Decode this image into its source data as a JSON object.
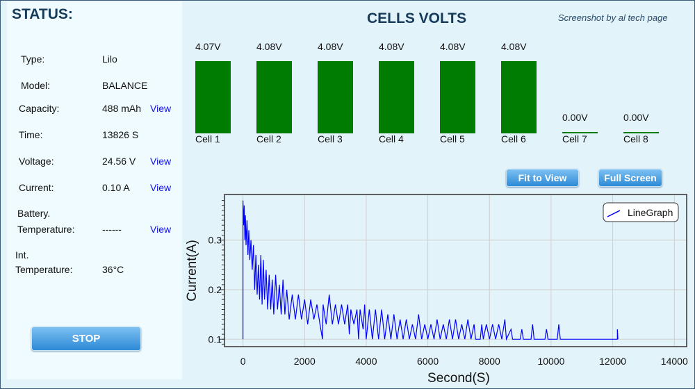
{
  "status": {
    "title": "STATUS:",
    "rows": [
      {
        "label": "Type:",
        "value": "Lilo"
      },
      {
        "label": "Model:",
        "value": "BALANCE"
      },
      {
        "label": "Capacity:",
        "value": "488 mAh",
        "link": "View"
      },
      {
        "label": "Time:",
        "value": "13826 S"
      },
      {
        "label": "Voltage:",
        "value": "24.56 V",
        "link": "View"
      },
      {
        "label": "Current:",
        "value": "0.10 A",
        "link": "View"
      },
      {
        "label_line1": "Battery.",
        "label": "Temperature:",
        "value": "------",
        "link": "View"
      },
      {
        "label_line1": "Int.",
        "label": "Temperature:",
        "value": "36°C"
      }
    ],
    "stop_label": "STOP"
  },
  "header": {
    "title": "CELLS VOLTS",
    "credit": "Screenshot by al tech page"
  },
  "cells": [
    {
      "name": "Cell 1",
      "voltage_label": "4.07V",
      "voltage": 4.07
    },
    {
      "name": "Cell 2",
      "voltage_label": "4.08V",
      "voltage": 4.08
    },
    {
      "name": "Cell 3",
      "voltage_label": "4.08V",
      "voltage": 4.08
    },
    {
      "name": "Cell 4",
      "voltage_label": "4.08V",
      "voltage": 4.08
    },
    {
      "name": "Cell 5",
      "voltage_label": "4.08V",
      "voltage": 4.08
    },
    {
      "name": "Cell 6",
      "voltage_label": "4.08V",
      "voltage": 4.08
    },
    {
      "name": "Cell 7",
      "voltage_label": "0.00V",
      "voltage": 0
    },
    {
      "name": "Cell 8",
      "voltage_label": "0.00V",
      "voltage": 0
    }
  ],
  "buttons": {
    "fit": "Fit to View",
    "full": "Full Screen"
  },
  "colors": {
    "bar": "#007d00",
    "line": "#0000ff",
    "accent": "#2e8ad6"
  },
  "chart_data": {
    "type": "line",
    "xlabel": "Second(S)",
    "ylabel": "Current(A)",
    "xlim": [
      -600,
      14400
    ],
    "ylim": [
      0.085,
      0.392
    ],
    "xticks": [
      0,
      2000,
      4000,
      6000,
      8000,
      10000,
      12000,
      14000
    ],
    "yticks": [
      0.1,
      0.2,
      0.3
    ],
    "ytick_labels": [
      "0.1",
      "0.2",
      "0.3"
    ],
    "grid": true,
    "legend": "top-right",
    "series": [
      {
        "name": "LineGraph",
        "points": [
          [
            0,
            0.1
          ],
          [
            0,
            0.38
          ],
          [
            20,
            0.33
          ],
          [
            40,
            0.37
          ],
          [
            60,
            0.3
          ],
          [
            80,
            0.35
          ],
          [
            100,
            0.29
          ],
          [
            130,
            0.34
          ],
          [
            160,
            0.27
          ],
          [
            190,
            0.32
          ],
          [
            220,
            0.26
          ],
          [
            260,
            0.3
          ],
          [
            300,
            0.24
          ],
          [
            340,
            0.29
          ],
          [
            380,
            0.2
          ],
          [
            420,
            0.27
          ],
          [
            460,
            0.19
          ],
          [
            500,
            0.25
          ],
          [
            540,
            0.18
          ],
          [
            580,
            0.27
          ],
          [
            620,
            0.17
          ],
          [
            660,
            0.26
          ],
          [
            700,
            0.18
          ],
          [
            750,
            0.24
          ],
          [
            800,
            0.16
          ],
          [
            850,
            0.23
          ],
          [
            900,
            0.16
          ],
          [
            950,
            0.22
          ],
          [
            1000,
            0.15
          ],
          [
            1060,
            0.23
          ],
          [
            1120,
            0.16
          ],
          [
            1180,
            0.21
          ],
          [
            1240,
            0.15
          ],
          [
            1300,
            0.22
          ],
          [
            1360,
            0.15
          ],
          [
            1420,
            0.2
          ],
          [
            1500,
            0.14
          ],
          [
            1600,
            0.19
          ],
          [
            1700,
            0.14
          ],
          [
            1800,
            0.19
          ],
          [
            1900,
            0.14
          ],
          [
            2000,
            0.18
          ],
          [
            2100,
            0.13
          ],
          [
            2200,
            0.18
          ],
          [
            2300,
            0.14
          ],
          [
            2400,
            0.17
          ],
          [
            2500,
            0.13
          ],
          [
            2580,
            0.1
          ],
          [
            2600,
            0.17
          ],
          [
            2700,
            0.13
          ],
          [
            2800,
            0.19
          ],
          [
            2900,
            0.13
          ],
          [
            3000,
            0.17
          ],
          [
            3100,
            0.13
          ],
          [
            3200,
            0.17
          ],
          [
            3300,
            0.13
          ],
          [
            3400,
            0.17
          ],
          [
            3450,
            0.11
          ],
          [
            3500,
            0.16
          ],
          [
            3600,
            0.13
          ],
          [
            3700,
            0.16
          ],
          [
            3750,
            0.1
          ],
          [
            3800,
            0.16
          ],
          [
            3900,
            0.12
          ],
          [
            3950,
            0.17
          ],
          [
            4000,
            0.1
          ],
          [
            4100,
            0.16
          ],
          [
            4200,
            0.1
          ],
          [
            4300,
            0.16
          ],
          [
            4400,
            0.1
          ],
          [
            4500,
            0.16
          ],
          [
            4600,
            0.1
          ],
          [
            4700,
            0.15
          ],
          [
            4800,
            0.1
          ],
          [
            4900,
            0.15
          ],
          [
            5000,
            0.1
          ],
          [
            5100,
            0.14
          ],
          [
            5200,
            0.1
          ],
          [
            5300,
            0.14
          ],
          [
            5400,
            0.1
          ],
          [
            5500,
            0.13
          ],
          [
            5600,
            0.1
          ],
          [
            5700,
            0.15
          ],
          [
            5800,
            0.1
          ],
          [
            5900,
            0.13
          ],
          [
            6000,
            0.1
          ],
          [
            6100,
            0.13
          ],
          [
            6200,
            0.1
          ],
          [
            6300,
            0.14
          ],
          [
            6400,
            0.1
          ],
          [
            6500,
            0.13
          ],
          [
            6600,
            0.1
          ],
          [
            6700,
            0.14
          ],
          [
            6800,
            0.1
          ],
          [
            6900,
            0.14
          ],
          [
            7000,
            0.1
          ],
          [
            7100,
            0.13
          ],
          [
            7200,
            0.1
          ],
          [
            7300,
            0.14
          ],
          [
            7400,
            0.1
          ],
          [
            7500,
            0.13
          ],
          [
            7550,
            0.1
          ],
          [
            7700,
            0.1
          ],
          [
            7750,
            0.13
          ],
          [
            7800,
            0.1
          ],
          [
            7900,
            0.13
          ],
          [
            8000,
            0.1
          ],
          [
            8100,
            0.13
          ],
          [
            8200,
            0.1
          ],
          [
            8300,
            0.13
          ],
          [
            8400,
            0.1
          ],
          [
            8500,
            0.14
          ],
          [
            8550,
            0.1
          ],
          [
            8700,
            0.12
          ],
          [
            8750,
            0.1
          ],
          [
            9000,
            0.1
          ],
          [
            9050,
            0.12
          ],
          [
            9100,
            0.1
          ],
          [
            9350,
            0.1
          ],
          [
            9400,
            0.13
          ],
          [
            9450,
            0.1
          ],
          [
            9800,
            0.1
          ],
          [
            9850,
            0.12
          ],
          [
            9900,
            0.1
          ],
          [
            10200,
            0.1
          ],
          [
            10250,
            0.13
          ],
          [
            10300,
            0.1
          ],
          [
            12150,
            0.1
          ],
          [
            12150,
            0.12
          ],
          [
            12170,
            0.1
          ]
        ]
      }
    ]
  }
}
